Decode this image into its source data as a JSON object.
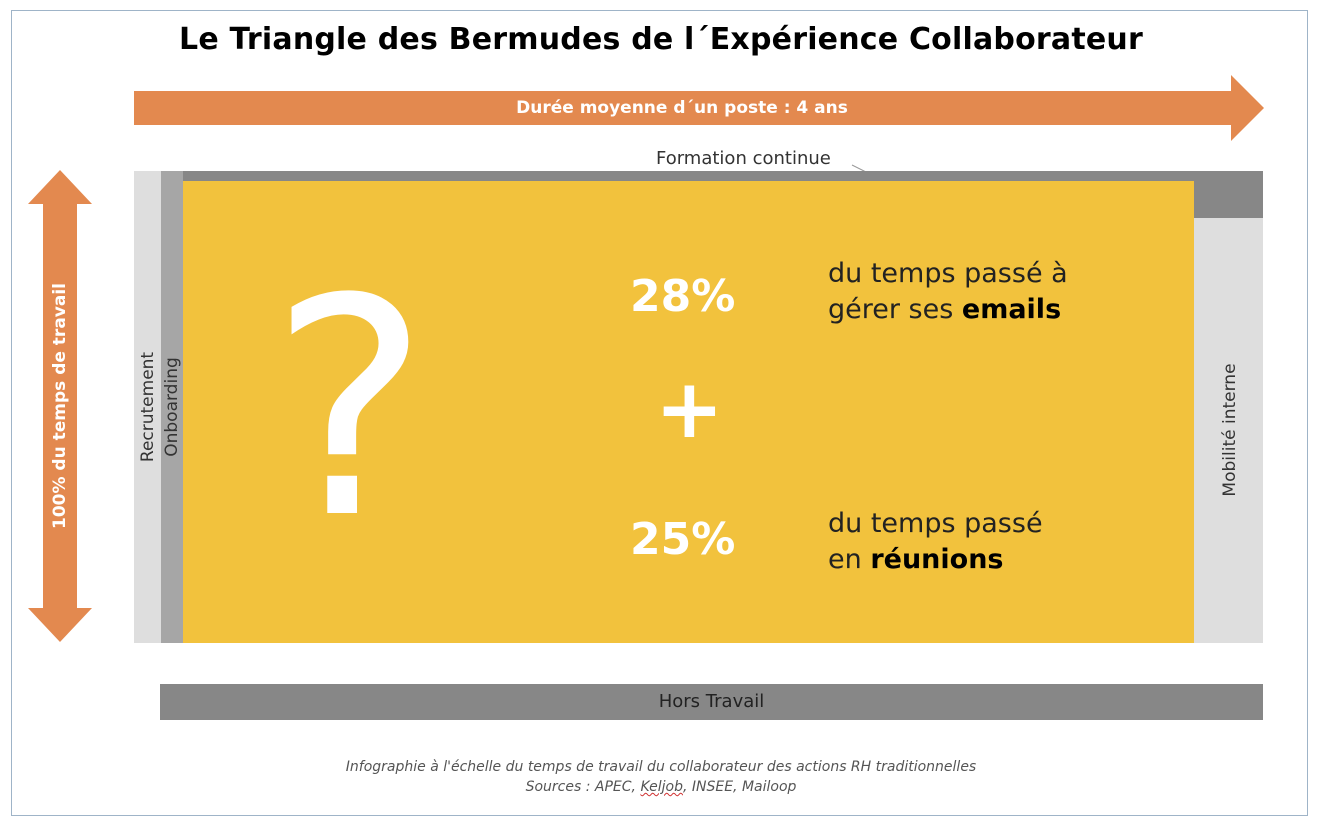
{
  "title": "Le Triangle des Bermudes de l´Expérience Collaborateur",
  "horizontal_arrow_label": "Durée moyenne d´un poste : 4 ans",
  "vertical_arrow_label": "100% du temps de travail",
  "regions": {
    "formation": "Formation continue",
    "recrutement": "Recrutement",
    "onboarding": "Onboarding",
    "mobilite": "Mobilité interne",
    "hors_travail": "Hors Travail"
  },
  "center": {
    "question_mark": "?",
    "plus": "+",
    "stat1": {
      "value": "28%",
      "line1": "du temps passé à",
      "line2_prefix": "gérer ses ",
      "line2_bold": "emails"
    },
    "stat2": {
      "value": "25%",
      "line1": "du temps passé",
      "line2_prefix": "en ",
      "line2_bold": "réunions"
    }
  },
  "caption": {
    "line1": "Infographie à l'échelle du temps de travail du collaborateur des actions RH traditionnelles",
    "sources_prefix": "Sources : APEC, ",
    "sources_keljob": "Keljob",
    "sources_suffix": ", INSEE, Mailoop"
  },
  "colors": {
    "orange": "#e3894f",
    "yellow": "#f2c23d",
    "dark_gray": "#878787",
    "mid_gray": "#a6a6a6",
    "light_gray": "#dedede"
  }
}
